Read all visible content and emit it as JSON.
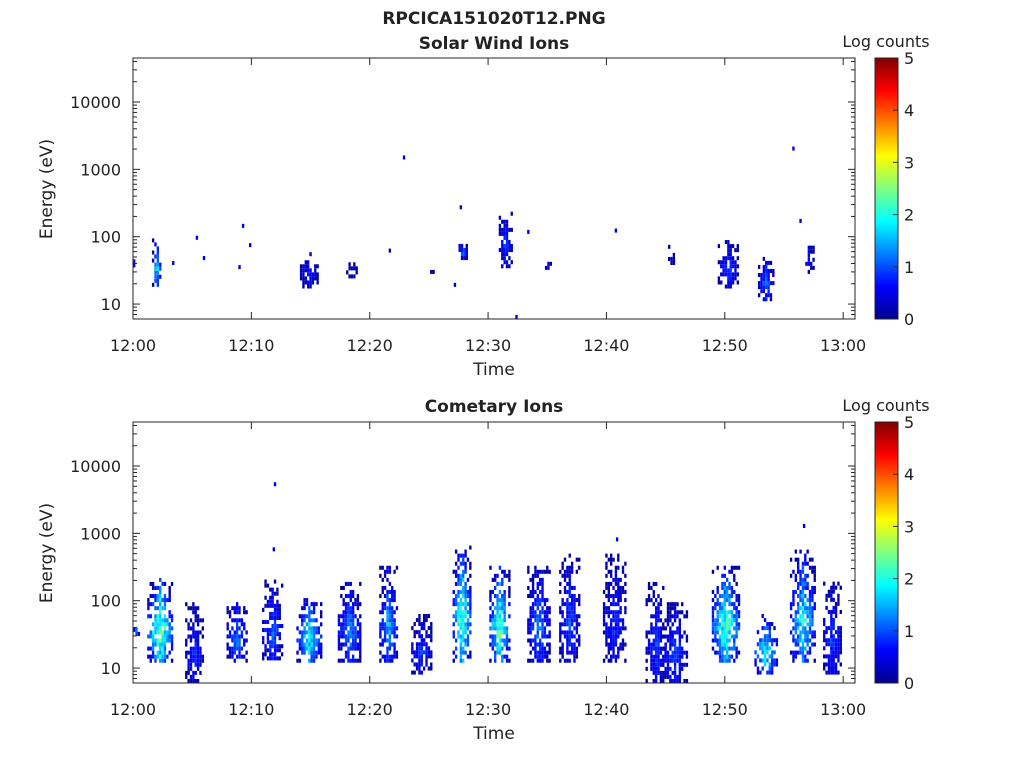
{
  "figure_title": "RPCICA151020T12.PNG",
  "chart_data": [
    {
      "type": "heatmap",
      "title": "Solar Wind Ions",
      "xlabel": "Time",
      "ylabel": "Energy (eV)",
      "y_scale": "log",
      "ylim": [
        6,
        45000
      ],
      "xlim_minutes": [
        0,
        61
      ],
      "x_ticks": [
        {
          "min": 0,
          "label": "12:00"
        },
        {
          "min": 10,
          "label": "12:10"
        },
        {
          "min": 20,
          "label": "12:20"
        },
        {
          "min": 30,
          "label": "12:30"
        },
        {
          "min": 40,
          "label": "12:40"
        },
        {
          "min": 50,
          "label": "12:50"
        },
        {
          "min": 60,
          "label": "13:00"
        }
      ],
      "y_ticks": [
        {
          "value": 10,
          "label": "10"
        },
        {
          "value": 100,
          "label": "100"
        },
        {
          "value": 1000,
          "label": "1000"
        },
        {
          "value": 10000,
          "label": "10000"
        }
      ],
      "colorbar": {
        "label": "Log counts",
        "min": 0,
        "max": 5,
        "ticks": [
          "0",
          "1",
          "2",
          "3",
          "4",
          "5"
        ]
      },
      "clusters": [
        {
          "t": 0.0,
          "dur": 0.3,
          "e_lo": 35,
          "e_hi": 45,
          "level": 0.6,
          "seed": 1
        },
        {
          "t": 1.6,
          "dur": 0.8,
          "e_lo": 18,
          "e_hi": 90,
          "level": 1.8,
          "seed": 2
        },
        {
          "t": 3.3,
          "dur": 0.2,
          "e_lo": 38,
          "e_hi": 45,
          "level": 0.4,
          "seed": 3
        },
        {
          "t": 5.3,
          "dur": 0.2,
          "e_lo": 90,
          "e_hi": 100,
          "level": 0.4,
          "seed": 4
        },
        {
          "t": 5.9,
          "dur": 0.2,
          "e_lo": 45,
          "e_hi": 55,
          "level": 0.4,
          "seed": 5
        },
        {
          "t": 8.9,
          "dur": 0.2,
          "e_lo": 33,
          "e_hi": 38,
          "level": 0.4,
          "seed": 6
        },
        {
          "t": 9.2,
          "dur": 0.2,
          "e_lo": 135,
          "e_hi": 150,
          "level": 0.4,
          "seed": 7
        },
        {
          "t": 9.8,
          "dur": 0.2,
          "e_lo": 70,
          "e_hi": 75,
          "level": 0.4,
          "seed": 8
        },
        {
          "t": 14.1,
          "dur": 1.6,
          "e_lo": 17,
          "e_hi": 60,
          "level": 0.7,
          "seed": 9
        },
        {
          "t": 18.0,
          "dur": 0.9,
          "e_lo": 24,
          "e_hi": 42,
          "level": 0.5,
          "seed": 10
        },
        {
          "t": 21.6,
          "dur": 0.2,
          "e_lo": 58,
          "e_hi": 66,
          "level": 0.4,
          "seed": 11
        },
        {
          "t": 22.8,
          "dur": 0.2,
          "e_lo": 1400,
          "e_hi": 1500,
          "level": 0.4,
          "seed": 12
        },
        {
          "t": 24.9,
          "dur": 0.5,
          "e_lo": 28,
          "e_hi": 32,
          "level": 0.4,
          "seed": 13
        },
        {
          "t": 27.1,
          "dur": 0.2,
          "e_lo": 18,
          "e_hi": 22,
          "level": 0.4,
          "seed": 14
        },
        {
          "t": 27.5,
          "dur": 0.8,
          "e_lo": 45,
          "e_hi": 80,
          "level": 1.2,
          "seed": 15
        },
        {
          "t": 27.6,
          "dur": 0.2,
          "e_lo": 255,
          "e_hi": 280,
          "level": 0.4,
          "seed": 16
        },
        {
          "t": 30.9,
          "dur": 1.2,
          "e_lo": 34,
          "e_hi": 250,
          "level": 0.9,
          "seed": 17
        },
        {
          "t": 32.3,
          "dur": 0.2,
          "e_lo": 6,
          "e_hi": 7,
          "level": 0.4,
          "seed": 18
        },
        {
          "t": 33.3,
          "dur": 0.2,
          "e_lo": 110,
          "e_hi": 118,
          "level": 0.4,
          "seed": 19
        },
        {
          "t": 34.8,
          "dur": 0.5,
          "e_lo": 28,
          "e_hi": 45,
          "level": 0.6,
          "seed": 20
        },
        {
          "t": 40.7,
          "dur": 0.2,
          "e_lo": 115,
          "e_hi": 125,
          "level": 0.4,
          "seed": 21
        },
        {
          "t": 45.2,
          "dur": 0.6,
          "e_lo": 38,
          "e_hi": 75,
          "level": 0.5,
          "seed": 22
        },
        {
          "t": 49.4,
          "dur": 1.8,
          "e_lo": 17,
          "e_hi": 85,
          "level": 0.9,
          "seed": 23
        },
        {
          "t": 52.8,
          "dur": 1.3,
          "e_lo": 11,
          "e_hi": 50,
          "level": 1.1,
          "seed": 24
        },
        {
          "t": 55.7,
          "dur": 0.2,
          "e_lo": 1900,
          "e_hi": 2100,
          "level": 0.4,
          "seed": 25
        },
        {
          "t": 56.3,
          "dur": 0.2,
          "e_lo": 160,
          "e_hi": 175,
          "level": 0.4,
          "seed": 26
        },
        {
          "t": 56.8,
          "dur": 0.8,
          "e_lo": 28,
          "e_hi": 80,
          "level": 0.8,
          "seed": 27
        }
      ]
    },
    {
      "type": "heatmap",
      "title": "Cometary Ions",
      "xlabel": "Time",
      "ylabel": "Energy (eV)",
      "y_scale": "log",
      "ylim": [
        6,
        45000
      ],
      "xlim_minutes": [
        0,
        61
      ],
      "x_ticks": [
        {
          "min": 0,
          "label": "12:00"
        },
        {
          "min": 10,
          "label": "12:10"
        },
        {
          "min": 20,
          "label": "12:20"
        },
        {
          "min": 30,
          "label": "12:30"
        },
        {
          "min": 40,
          "label": "12:40"
        },
        {
          "min": 50,
          "label": "12:50"
        },
        {
          "min": 60,
          "label": "13:00"
        }
      ],
      "y_ticks": [
        {
          "value": 10,
          "label": "10"
        },
        {
          "value": 100,
          "label": "100"
        },
        {
          "value": 1000,
          "label": "1000"
        },
        {
          "value": 10000,
          "label": "10000"
        }
      ],
      "colorbar": {
        "label": "Log counts",
        "min": 0,
        "max": 5,
        "ticks": [
          "0",
          "1",
          "2",
          "3",
          "4",
          "5"
        ]
      },
      "clusters": [
        {
          "t": 0.0,
          "dur": 0.5,
          "e_lo": 30,
          "e_hi": 45,
          "level": 1.4,
          "seed": 31
        },
        {
          "t": 1.2,
          "dur": 2.1,
          "e_lo": 12,
          "e_hi": 230,
          "level": 2.5,
          "seed": 32
        },
        {
          "t": 4.4,
          "dur": 1.6,
          "e_lo": 6,
          "e_hi": 90,
          "level": 0.8,
          "seed": 33
        },
        {
          "t": 7.9,
          "dur": 1.9,
          "e_lo": 12,
          "e_hi": 100,
          "level": 1.2,
          "seed": 34
        },
        {
          "t": 10.9,
          "dur": 1.7,
          "e_lo": 13,
          "e_hi": 200,
          "level": 1.1,
          "seed": 35
        },
        {
          "t": 11.8,
          "dur": 0.2,
          "e_lo": 540,
          "e_hi": 600,
          "level": 0.4,
          "seed": 36
        },
        {
          "t": 11.9,
          "dur": 0.2,
          "e_lo": 5000,
          "e_hi": 5400,
          "level": 0.4,
          "seed": 37
        },
        {
          "t": 13.8,
          "dur": 2.1,
          "e_lo": 12,
          "e_hi": 110,
          "level": 1.9,
          "seed": 38
        },
        {
          "t": 17.3,
          "dur": 2.0,
          "e_lo": 12,
          "e_hi": 200,
          "level": 1.3,
          "seed": 39
        },
        {
          "t": 20.8,
          "dur": 1.6,
          "e_lo": 12,
          "e_hi": 330,
          "level": 1.5,
          "seed": 40
        },
        {
          "t": 23.5,
          "dur": 1.7,
          "e_lo": 8,
          "e_hi": 60,
          "level": 0.9,
          "seed": 41
        },
        {
          "t": 27.0,
          "dur": 1.6,
          "e_lo": 12,
          "e_hi": 650,
          "level": 2.5,
          "seed": 42
        },
        {
          "t": 30.1,
          "dur": 1.9,
          "e_lo": 12,
          "e_hi": 330,
          "level": 2.4,
          "seed": 43
        },
        {
          "t": 33.3,
          "dur": 2.0,
          "e_lo": 12,
          "e_hi": 330,
          "level": 1.2,
          "seed": 44
        },
        {
          "t": 36.0,
          "dur": 1.8,
          "e_lo": 12,
          "e_hi": 520,
          "level": 1.0,
          "seed": 45
        },
        {
          "t": 39.7,
          "dur": 2.0,
          "e_lo": 12,
          "e_hi": 480,
          "level": 0.8,
          "seed": 46
        },
        {
          "t": 40.8,
          "dur": 0.2,
          "e_lo": 760,
          "e_hi": 820,
          "level": 0.4,
          "seed": 47
        },
        {
          "t": 43.3,
          "dur": 1.8,
          "e_lo": 6,
          "e_hi": 200,
          "level": 0.9,
          "seed": 48
        },
        {
          "t": 44.7,
          "dur": 2.2,
          "e_lo": 6,
          "e_hi": 90,
          "level": 1.0,
          "seed": 49
        },
        {
          "t": 48.9,
          "dur": 2.4,
          "e_lo": 12,
          "e_hi": 340,
          "level": 2.3,
          "seed": 50
        },
        {
          "t": 52.5,
          "dur": 2.0,
          "e_lo": 8,
          "e_hi": 60,
          "level": 2.0,
          "seed": 51
        },
        {
          "t": 55.5,
          "dur": 2.1,
          "e_lo": 12,
          "e_hi": 550,
          "level": 1.9,
          "seed": 52
        },
        {
          "t": 56.6,
          "dur": 0.2,
          "e_lo": 1200,
          "e_hi": 1300,
          "level": 0.4,
          "seed": 53
        },
        {
          "t": 58.3,
          "dur": 1.6,
          "e_lo": 8,
          "e_hi": 180,
          "level": 0.9,
          "seed": 54
        }
      ]
    }
  ]
}
